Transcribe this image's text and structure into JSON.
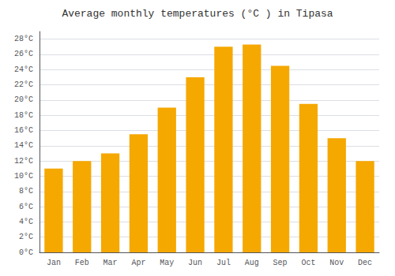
{
  "chart_data": {
    "type": "bar",
    "title": "Average monthly temperatures (°C ) in Tipasa",
    "categories": [
      "Jan",
      "Feb",
      "Mar",
      "Apr",
      "May",
      "Jun",
      "Jul",
      "Aug",
      "Sep",
      "Oct",
      "Nov",
      "Dec"
    ],
    "values": [
      11,
      12,
      13,
      15.5,
      19,
      23,
      27,
      27.3,
      24.5,
      19.5,
      15,
      12
    ],
    "color": "#F5A800",
    "ylim": [
      0,
      29
    ],
    "yticks": [
      {
        "value": 0,
        "label": "0°C"
      },
      {
        "value": 2,
        "label": "2°C"
      },
      {
        "value": 4,
        "label": "4°C"
      },
      {
        "value": 6,
        "label": "6°C"
      },
      {
        "value": 8,
        "label": "8°C"
      },
      {
        "value": 10,
        "label": "10°C"
      },
      {
        "value": 12,
        "label": "12°C"
      },
      {
        "value": 14,
        "label": "14°C"
      },
      {
        "value": 16,
        "label": "16°C"
      },
      {
        "value": 18,
        "label": "18°C"
      },
      {
        "value": 20,
        "label": "20°C"
      },
      {
        "value": 22,
        "label": "22°C"
      },
      {
        "value": 24,
        "label": "24°C"
      },
      {
        "value": 26,
        "label": "26°C"
      },
      {
        "value": 28,
        "label": "28°C"
      }
    ],
    "grid": true
  }
}
